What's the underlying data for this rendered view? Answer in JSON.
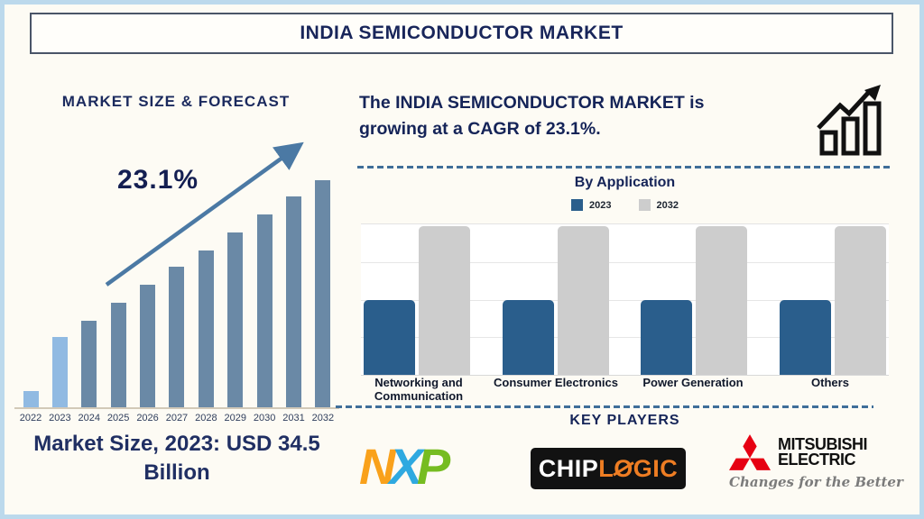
{
  "title": "INDIA SEMICONDUCTOR MARKET",
  "colors": {
    "navy_text": "#18255A",
    "page_background": "#FDFBF4",
    "outer_border": "#BCD9EC",
    "forecast_bar": "#6A89A6",
    "forecast_bar_highlight": "#90BAE2",
    "trend_arrow": "#4B79A4",
    "application_2023": "#2A5E8C",
    "application_2032": "#CDCDCD",
    "dashed_divider": "#3F6E99",
    "mitsubishi_red": "#E60012",
    "chiplogic_orange": "#EE7D23"
  },
  "left_panel": {
    "heading": "MARKET SIZE & FORECAST",
    "cagr_label": "23.1%",
    "market_size_note": "Market Size, 2023: USD 34.5 Billion"
  },
  "right_panel": {
    "cagr_statement": "The INDIA SEMICONDUCTOR MARKET is growing at a CAGR of 23.1%.",
    "growth_chart_icon": "bar-chart-with-rising-arrow",
    "by_application": {
      "heading": "By Application",
      "legend": [
        {
          "label": "2023",
          "color": "#2A5E8C"
        },
        {
          "label": "2032",
          "color": "#CDCDCD"
        }
      ]
    },
    "key_players": {
      "heading": "KEY PLAYERS",
      "logos": [
        {
          "name": "NXP",
          "letters": [
            {
              "char": "N",
              "color": "#F9A11B"
            },
            {
              "char": "X",
              "color": "#2FA9E0"
            },
            {
              "char": "P",
              "color": "#76BC21"
            }
          ]
        },
        {
          "name": "CHIPLOGIC",
          "part_white": "CHIP",
          "part_orange_l": "L",
          "part_slashed_o": "O",
          "part_orange_rest": "GIC"
        },
        {
          "name": "MITSUBISHI ELECTRIC",
          "line1": "MITSUBISHI",
          "line2": "ELECTRIC",
          "tagline": "Changes for the Better"
        }
      ]
    }
  },
  "chart_data": [
    {
      "type": "bar",
      "title": "MARKET SIZE & FORECAST",
      "categories": [
        "2022",
        "2023",
        "2024",
        "2025",
        "2026",
        "2027",
        "2028",
        "2029",
        "2030",
        "2031",
        "2032"
      ],
      "values_relative": [
        7,
        31,
        38,
        46,
        54,
        62,
        69,
        77,
        85,
        93,
        100
      ],
      "value_note": "no y-axis shown; values are relative bar heights indexed to 2032 = 100",
      "known_point": {
        "year": "2023",
        "value_usd_billion": 34.5
      },
      "annotations": [
        "23.1%"
      ],
      "bar_color": "#6A89A6",
      "highlight_color": "#90BAE2",
      "highlight_categories": [
        "2022",
        "2023"
      ],
      "grid": false,
      "xlabel": "",
      "ylabel": ""
    },
    {
      "type": "bar",
      "subtype": "grouped",
      "title": "By Application",
      "categories": [
        "Networking and Communication",
        "Consumer Electronics",
        "Power Generation",
        "Others"
      ],
      "series": [
        {
          "name": "2023",
          "values": [
            50,
            50,
            50,
            50
          ],
          "color": "#2A5E8C"
        },
        {
          "name": "2032",
          "values": [
            100,
            100,
            100,
            100
          ],
          "color": "#CDCDCD"
        }
      ],
      "value_note": "no y-axis shown; values are relative bar heights, 2032 bars fill the plot",
      "ylim": [
        0,
        100
      ],
      "grid": true,
      "legend_position": "top",
      "xlabel": "",
      "ylabel": ""
    }
  ]
}
